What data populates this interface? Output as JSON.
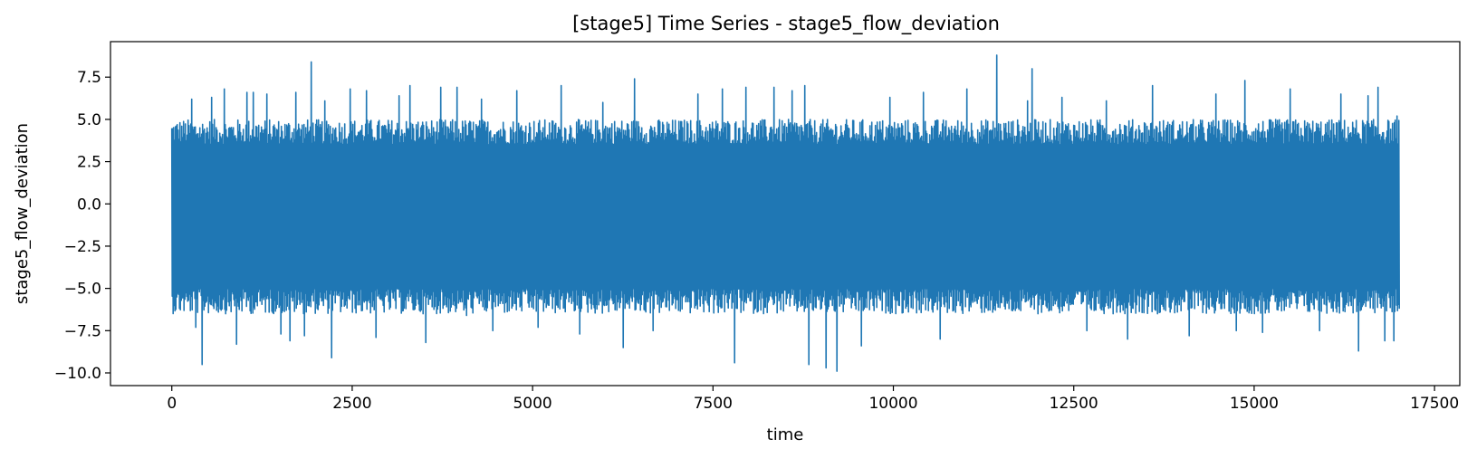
{
  "chart_data": {
    "type": "line",
    "title": "[stage5] Time Series - stage5_flow_deviation",
    "xlabel": "time",
    "ylabel": "stage5_flow_deviation",
    "xlim": [
      -850,
      17850
    ],
    "ylim": [
      -10.75,
      9.6
    ],
    "x_ticks": [
      0,
      2500,
      5000,
      7500,
      10000,
      12500,
      15000,
      17500
    ],
    "x_tick_labels": [
      "0",
      "2500",
      "5000",
      "7500",
      "10000",
      "12500",
      "15000",
      "17500"
    ],
    "y_ticks": [
      7.5,
      5.0,
      2.5,
      0.0,
      -2.5,
      -5.0,
      -7.5,
      -10.0
    ],
    "y_tick_labels": [
      "7.5",
      "5.0",
      "2.5",
      "0.0",
      "−2.5",
      "−5.0",
      "−7.5",
      "−10.0"
    ],
    "grid": false,
    "series": [
      {
        "color": "#1f77b4",
        "x_start": 0,
        "x_end": 17000,
        "band_low": -5.0,
        "band_high": 3.5,
        "spikes": [
          {
            "x": 30,
            "y": -4.9
          },
          {
            "x": 120,
            "y": 4.4
          },
          {
            "x": 280,
            "y": 6.2
          },
          {
            "x": 330,
            "y": -7.3
          },
          {
            "x": 420,
            "y": -9.5
          },
          {
            "x": 560,
            "y": 6.3
          },
          {
            "x": 730,
            "y": 6.8
          },
          {
            "x": 890,
            "y": -8.3
          },
          {
            "x": 1050,
            "y": 6.6
          },
          {
            "x": 1130,
            "y": 6.6
          },
          {
            "x": 1320,
            "y": 6.5
          },
          {
            "x": 1510,
            "y": -7.7
          },
          {
            "x": 1640,
            "y": -8.1
          },
          {
            "x": 1720,
            "y": 6.6
          },
          {
            "x": 1830,
            "y": -7.8
          },
          {
            "x": 1930,
            "y": 8.4
          },
          {
            "x": 2120,
            "y": 6.1
          },
          {
            "x": 2210,
            "y": -9.1
          },
          {
            "x": 2470,
            "y": 6.8
          },
          {
            "x": 2700,
            "y": 6.7
          },
          {
            "x": 2830,
            "y": -7.9
          },
          {
            "x": 3150,
            "y": 6.4
          },
          {
            "x": 3300,
            "y": 7.0
          },
          {
            "x": 3520,
            "y": -8.2
          },
          {
            "x": 3730,
            "y": 6.9
          },
          {
            "x": 3960,
            "y": 6.9
          },
          {
            "x": 4080,
            "y": -6.6
          },
          {
            "x": 4300,
            "y": 6.2
          },
          {
            "x": 4450,
            "y": -7.5
          },
          {
            "x": 4780,
            "y": 6.7
          },
          {
            "x": 5070,
            "y": -7.3
          },
          {
            "x": 5400,
            "y": 7.0
          },
          {
            "x": 5650,
            "y": -7.7
          },
          {
            "x": 5980,
            "y": 6.0
          },
          {
            "x": 6250,
            "y": -8.5
          },
          {
            "x": 6420,
            "y": 7.4
          },
          {
            "x": 6670,
            "y": -7.5
          },
          {
            "x": 7300,
            "y": 6.5
          },
          {
            "x": 7640,
            "y": 6.8
          },
          {
            "x": 7800,
            "y": -9.4
          },
          {
            "x": 7960,
            "y": 6.9
          },
          {
            "x": 8350,
            "y": 6.9
          },
          {
            "x": 8600,
            "y": 6.7
          },
          {
            "x": 8780,
            "y": 7.0
          },
          {
            "x": 8830,
            "y": -9.5
          },
          {
            "x": 9070,
            "y": -9.7
          },
          {
            "x": 9210,
            "y": -9.9
          },
          {
            "x": 9550,
            "y": -8.4
          },
          {
            "x": 9950,
            "y": 6.3
          },
          {
            "x": 10420,
            "y": 6.6
          },
          {
            "x": 10650,
            "y": -8.0
          },
          {
            "x": 11020,
            "y": 6.8
          },
          {
            "x": 11440,
            "y": 8.8
          },
          {
            "x": 11860,
            "y": 6.1
          },
          {
            "x": 11920,
            "y": 8.0
          },
          {
            "x": 12340,
            "y": 6.3
          },
          {
            "x": 12680,
            "y": -7.5
          },
          {
            "x": 12960,
            "y": 6.1
          },
          {
            "x": 13250,
            "y": -8.0
          },
          {
            "x": 13600,
            "y": 7.0
          },
          {
            "x": 14100,
            "y": -7.8
          },
          {
            "x": 14480,
            "y": 6.5
          },
          {
            "x": 14750,
            "y": -7.5
          },
          {
            "x": 14880,
            "y": 7.3
          },
          {
            "x": 15120,
            "y": -7.6
          },
          {
            "x": 15500,
            "y": 6.8
          },
          {
            "x": 15900,
            "y": -7.5
          },
          {
            "x": 16200,
            "y": 6.5
          },
          {
            "x": 16440,
            "y": -8.7
          },
          {
            "x": 16580,
            "y": 6.4
          },
          {
            "x": 16720,
            "y": 6.9
          },
          {
            "x": 16810,
            "y": -8.1
          },
          {
            "x": 16940,
            "y": -8.1
          },
          {
            "x": 16990,
            "y": 5.2
          }
        ]
      }
    ]
  }
}
